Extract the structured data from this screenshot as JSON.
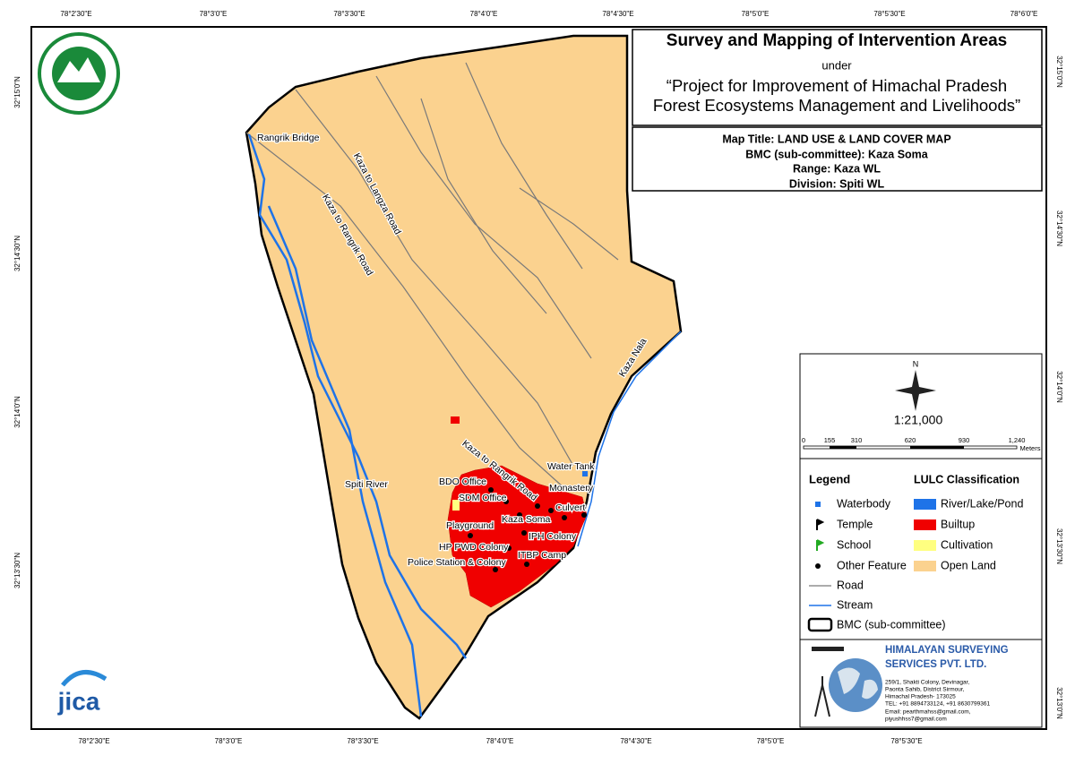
{
  "grid_labels": {
    "top": [
      "78°2'30\"E",
      "78°3'0\"E",
      "78°3'30\"E",
      "78°4'0\"E",
      "78°4'30\"E",
      "78°5'0\"E",
      "78°5'30\"E",
      "78°6'0\"E"
    ],
    "bottom": [
      "78°2'30\"E",
      "78°3'0\"E",
      "78°3'30\"E",
      "78°4'0\"E",
      "78°4'30\"E",
      "78°5'0\"E",
      "78°5'30\"E"
    ],
    "left": [
      "32°15'0\"N",
      "32°14'30\"N",
      "32°14'0\"N",
      "32°13'30\"N"
    ],
    "right": [
      "32°15'0\"N",
      "32°14'30\"N",
      "32°14'0\"N",
      "32°13'30\"N",
      "32°13'0\"N"
    ]
  },
  "title_box": {
    "title": "Survey and Mapping of Intervention Areas",
    "under": "under",
    "project_line1": "“Project for Improvement of Himachal Pradesh",
    "project_line2": "Forest Ecosystems Management and Livelihoods”"
  },
  "map_info": {
    "map_title": "Map Title: LAND USE & LAND COVER MAP",
    "bmc": "BMC (sub-committee): Kaza Soma",
    "range": "Range: Kaza WL",
    "division": "Division: Spiti WL"
  },
  "map_labels": [
    "Rangrik Bridge",
    "Kaza to Langza Road",
    "Kaza to Rangrik Road",
    "Spiti River",
    "Kaza Nala",
    "Water Tank",
    "Monastery",
    "BDO Office",
    "SDM Office",
    "Culvert",
    "Playground",
    "Kaza Soma",
    "IPH Colony",
    "HP PWD Colony",
    "ITBP Camp",
    "Police Station & Colony",
    "Kaza to Rangrik Road"
  ],
  "north_arrow": "N",
  "scale": "1:21,000",
  "scale_bar": {
    "labels": [
      "0",
      "155",
      "310",
      "620",
      "930",
      "1,240"
    ],
    "unit": "Meters"
  },
  "legend": {
    "title": "Legend",
    "items": [
      "Waterbody",
      "Temple",
      "School",
      "Other Feature",
      "Road",
      "Stream",
      "BMC (sub-committee)"
    ]
  },
  "lulc": {
    "title": "LULC Classification",
    "items": [
      "River/Lake/Pond",
      "Builtup",
      "Cultivation",
      "Open Land"
    ]
  },
  "company": {
    "name_line1": "HIMALAYAN SURVEYING",
    "name_line2": "SERVICES PVT. LTD.",
    "address": [
      "259/1, Shakti Colony, Devinagar,",
      "Paonta Sahib, District Sirmour,",
      "Himachal Pradesh- 173025",
      "TEL: +91 8894733124, +91 8630799361",
      "Email: pearthmahss@gmail.com,",
      "piyushhss7@gmail.com"
    ]
  },
  "logo_text": "jica"
}
